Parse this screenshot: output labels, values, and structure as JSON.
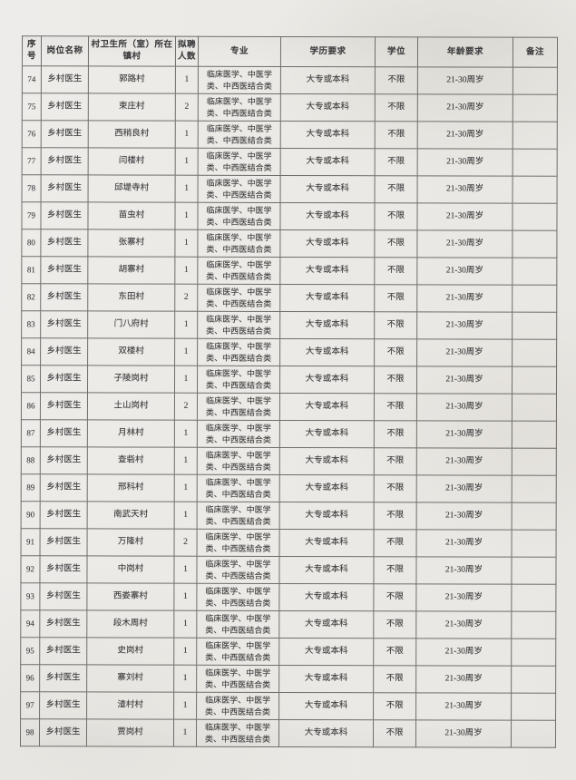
{
  "colors": {
    "paper": "#eceae6",
    "table_border": "#6f6e6c",
    "text": "#3c3c3e"
  },
  "table": {
    "headers": [
      "序号",
      "岗位名称",
      "村卫生所（室）所在镇村",
      "拟聘人数",
      "专业",
      "学历要求",
      "学位",
      "年龄要求",
      "备注"
    ],
    "rows": [
      {
        "no": "74",
        "position": "乡村医生",
        "village": "郭路村",
        "count": "1",
        "major": "临床医学、中医学类、中西医结合类",
        "education": "大专或本科",
        "degree": "不限",
        "age": "21-30周岁",
        "remark": ""
      },
      {
        "no": "75",
        "position": "乡村医生",
        "village": "束庄村",
        "count": "2",
        "major": "临床医学、中医学类、中西医结合类",
        "education": "大专或本科",
        "degree": "不限",
        "age": "21-30周岁",
        "remark": ""
      },
      {
        "no": "76",
        "position": "乡村医生",
        "village": "西稍良村",
        "count": "1",
        "major": "临床医学、中医学类、中西医结合类",
        "education": "大专或本科",
        "degree": "不限",
        "age": "21-30周岁",
        "remark": ""
      },
      {
        "no": "77",
        "position": "乡村医生",
        "village": "闫楼村",
        "count": "1",
        "major": "临床医学、中医学类、中西医结合类",
        "education": "大专或本科",
        "degree": "不限",
        "age": "21-30周岁",
        "remark": ""
      },
      {
        "no": "78",
        "position": "乡村医生",
        "village": "邱堤寺村",
        "count": "1",
        "major": "临床医学、中医学类、中西医结合类",
        "education": "大专或本科",
        "degree": "不限",
        "age": "21-30周岁",
        "remark": ""
      },
      {
        "no": "79",
        "position": "乡村医生",
        "village": "苗虫村",
        "count": "1",
        "major": "临床医学、中医学类、中西医结合类",
        "education": "大专或本科",
        "degree": "不限",
        "age": "21-30周岁",
        "remark": ""
      },
      {
        "no": "80",
        "position": "乡村医生",
        "village": "张寨村",
        "count": "1",
        "major": "临床医学、中医学类、中西医结合类",
        "education": "大专或本科",
        "degree": "不限",
        "age": "21-30周岁",
        "remark": ""
      },
      {
        "no": "81",
        "position": "乡村医生",
        "village": "胡寨村",
        "count": "1",
        "major": "临床医学、中医学类、中西医结合类",
        "education": "大专或本科",
        "degree": "不限",
        "age": "21-30周岁",
        "remark": ""
      },
      {
        "no": "82",
        "position": "乡村医生",
        "village": "东田村",
        "count": "2",
        "major": "临床医学、中医学类、中西医结合类",
        "education": "大专或本科",
        "degree": "不限",
        "age": "21-30周岁",
        "remark": ""
      },
      {
        "no": "83",
        "position": "乡村医生",
        "village": "门八府村",
        "count": "1",
        "major": "临床医学、中医学类、中西医结合类",
        "education": "大专或本科",
        "degree": "不限",
        "age": "21-30周岁",
        "remark": ""
      },
      {
        "no": "84",
        "position": "乡村医生",
        "village": "双楼村",
        "count": "1",
        "major": "临床医学、中医学类、中西医结合类",
        "education": "大专或本科",
        "degree": "不限",
        "age": "21-30周岁",
        "remark": ""
      },
      {
        "no": "85",
        "position": "乡村医生",
        "village": "子陵岗村",
        "count": "1",
        "major": "临床医学、中医学类、中西医结合类",
        "education": "大专或本科",
        "degree": "不限",
        "age": "21-30周岁",
        "remark": ""
      },
      {
        "no": "86",
        "position": "乡村医生",
        "village": "土山岗村",
        "count": "2",
        "major": "临床医学、中医学类、中西医结合类",
        "education": "大专或本科",
        "degree": "不限",
        "age": "21-30周岁",
        "remark": ""
      },
      {
        "no": "87",
        "position": "乡村医生",
        "village": "月林村",
        "count": "1",
        "major": "临床医学、中医学类、中西医结合类",
        "education": "大专或本科",
        "degree": "不限",
        "age": "21-30周岁",
        "remark": ""
      },
      {
        "no": "88",
        "position": "乡村医生",
        "village": "查砦村",
        "count": "1",
        "major": "临床医学、中医学类、中西医结合类",
        "education": "大专或本科",
        "degree": "不限",
        "age": "21-30周岁",
        "remark": ""
      },
      {
        "no": "89",
        "position": "乡村医生",
        "village": "邢科村",
        "count": "1",
        "major": "临床医学、中医学类、中西医结合类",
        "education": "大专或本科",
        "degree": "不限",
        "age": "21-30周岁",
        "remark": ""
      },
      {
        "no": "90",
        "position": "乡村医生",
        "village": "南武天村",
        "count": "1",
        "major": "临床医学、中医学类、中西医结合类",
        "education": "大专或本科",
        "degree": "不限",
        "age": "21-30周岁",
        "remark": ""
      },
      {
        "no": "91",
        "position": "乡村医生",
        "village": "万隆村",
        "count": "2",
        "major": "临床医学、中医学类、中西医结合类",
        "education": "大专或本科",
        "degree": "不限",
        "age": "21-30周岁",
        "remark": ""
      },
      {
        "no": "92",
        "position": "乡村医生",
        "village": "中岗村",
        "count": "1",
        "major": "临床医学、中医学类、中西医结合类",
        "education": "大专或本科",
        "degree": "不限",
        "age": "21-30周岁",
        "remark": ""
      },
      {
        "no": "93",
        "position": "乡村医生",
        "village": "西娄寨村",
        "count": "1",
        "major": "临床医学、中医学类、中西医结合类",
        "education": "大专或本科",
        "degree": "不限",
        "age": "21-30周岁",
        "remark": ""
      },
      {
        "no": "94",
        "position": "乡村医生",
        "village": "段木周村",
        "count": "1",
        "major": "临床医学、中医学类、中西医结合类",
        "education": "大专或本科",
        "degree": "不限",
        "age": "21-30周岁",
        "remark": ""
      },
      {
        "no": "95",
        "position": "乡村医生",
        "village": "史岗村",
        "count": "1",
        "major": "临床医学、中医学类、中西医结合类",
        "education": "大专或本科",
        "degree": "不限",
        "age": "21-30周岁",
        "remark": ""
      },
      {
        "no": "96",
        "position": "乡村医生",
        "village": "寨刘村",
        "count": "1",
        "major": "临床医学、中医学类、中西医结合类",
        "education": "大专或本科",
        "degree": "不限",
        "age": "21-30周岁",
        "remark": ""
      },
      {
        "no": "97",
        "position": "乡村医生",
        "village": "渣村村",
        "count": "1",
        "major": "临床医学、中医学类、中西医结合类",
        "education": "大专或本科",
        "degree": "不限",
        "age": "21-30周岁",
        "remark": ""
      },
      {
        "no": "98",
        "position": "乡村医生",
        "village": "贾岗村",
        "count": "1",
        "major": "临床医学、中医学类、中西医结合类",
        "education": "大专或本科",
        "degree": "不限",
        "age": "21-30周岁",
        "remark": ""
      }
    ]
  }
}
